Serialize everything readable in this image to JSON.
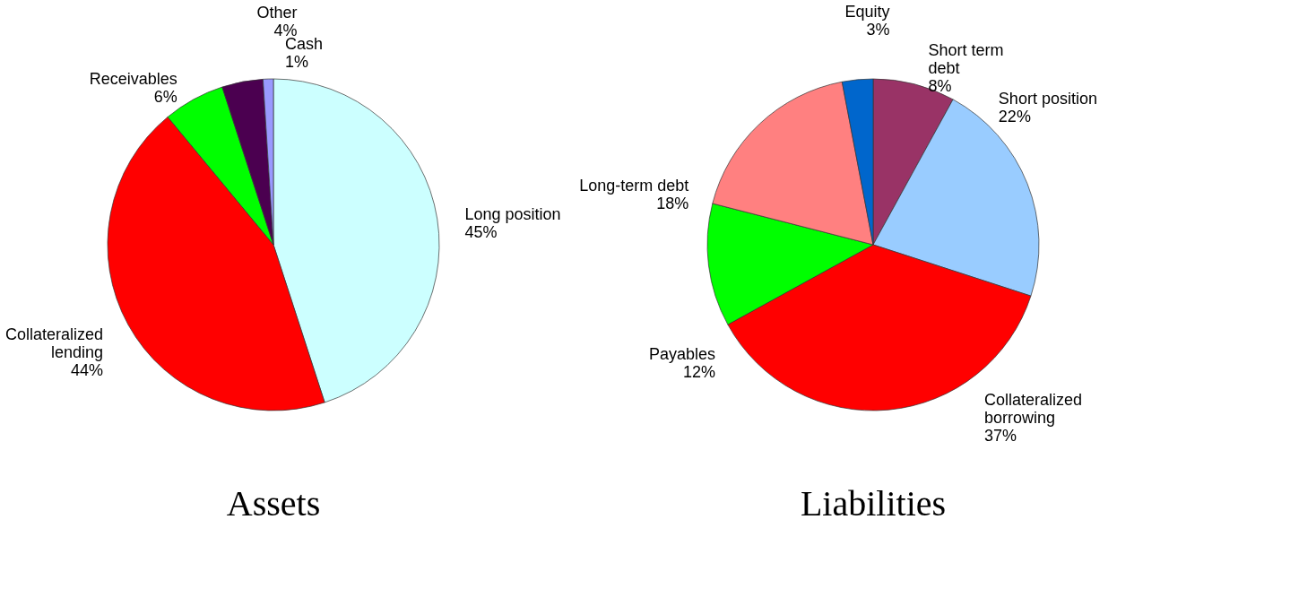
{
  "chart_data": [
    {
      "type": "pie",
      "title": "Assets",
      "categories": [
        "Long position",
        "Collateralized lending",
        "Receivables",
        "Other",
        "Cash"
      ],
      "values": [
        45,
        44,
        6,
        4,
        1
      ],
      "colors": [
        "#ccffff",
        "#ff0000",
        "#00ff00",
        "#4b0050",
        "#9999ff"
      ],
      "value_labels": [
        "45%",
        "44%",
        "6%",
        "4%",
        "1%"
      ]
    },
    {
      "type": "pie",
      "title": "Liabilities",
      "categories": [
        "Short term debt",
        "Short position",
        "Collateralized borrowing",
        "Payables",
        "Long-term debt",
        "Equity"
      ],
      "values": [
        8,
        22,
        37,
        12,
        18,
        3
      ],
      "colors": [
        "#993366",
        "#99ccff",
        "#ff0000",
        "#00ff00",
        "#ff8080",
        "#0066cc"
      ],
      "value_labels": [
        "8%",
        "22%",
        "37%",
        "12%",
        "18%",
        "3%"
      ]
    }
  ]
}
